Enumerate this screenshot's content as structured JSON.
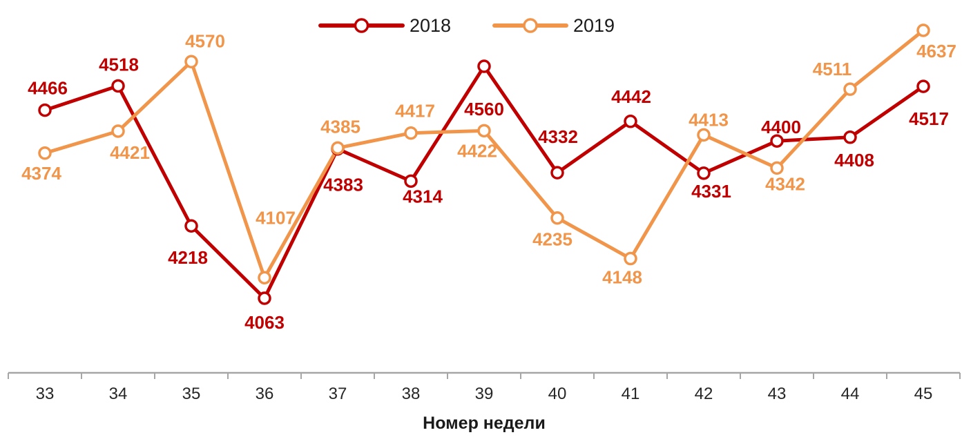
{
  "chart_data": {
    "type": "line",
    "title": "",
    "xlabel": "Номер недели",
    "ylabel": "",
    "x": [
      "33",
      "34",
      "35",
      "36",
      "37",
      "38",
      "39",
      "40",
      "41",
      "42",
      "43",
      "44",
      "45"
    ],
    "ylim": [
      4063,
      4637
    ],
    "grid": false,
    "legend_position": "top-center",
    "marker": "open-circle",
    "axis_color": "#A6A6A6",
    "text_color": "#262626",
    "series": [
      {
        "name": "2018",
        "color": "#C00000",
        "values": [
          4466,
          4518,
          4218,
          4063,
          4383,
          4314,
          4560,
          4332,
          4442,
          4331,
          4400,
          4408,
          4517
        ],
        "label_offsets": [
          [
            4,
            -32
          ],
          [
            1,
            -31
          ],
          [
            -5,
            46
          ],
          [
            0,
            35
          ],
          [
            8,
            52
          ],
          [
            17,
            22
          ],
          [
            0,
            62
          ],
          [
            1,
            -52
          ],
          [
            1,
            -36
          ],
          [
            11,
            26
          ],
          [
            6,
            -20
          ],
          [
            6,
            33
          ],
          [
            8,
            47
          ]
        ]
      },
      {
        "name": "2019",
        "color": "#F0954A",
        "values": [
          4374,
          4421,
          4570,
          4107,
          4385,
          4417,
          4422,
          4235,
          4148,
          4413,
          4342,
          4511,
          4637
        ],
        "label_offsets": [
          [
            -5,
            29
          ],
          [
            17,
            31
          ],
          [
            20,
            -30
          ],
          [
            16,
            -87
          ],
          [
            4,
            -31
          ],
          [
            6,
            -32
          ],
          [
            -10,
            29
          ],
          [
            -7,
            31
          ],
          [
            -12,
            27
          ],
          [
            7,
            -22
          ],
          [
            12,
            23
          ],
          [
            -26,
            -29
          ],
          [
            19,
            30
          ]
        ]
      }
    ]
  }
}
